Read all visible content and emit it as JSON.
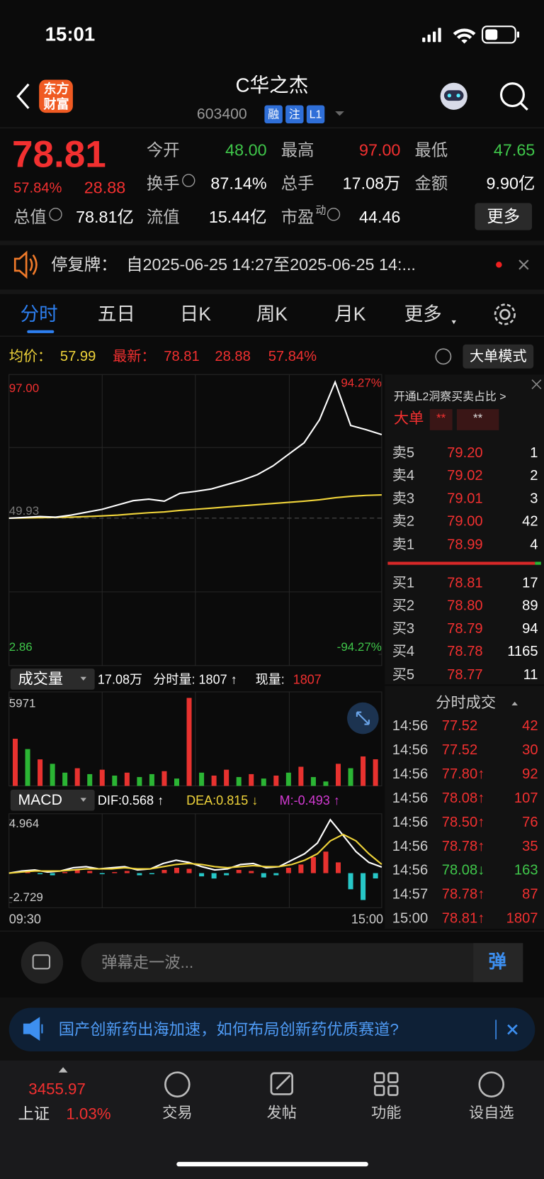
{
  "status": {
    "time": "15:01"
  },
  "header": {
    "logo": [
      "东方",
      "财富"
    ],
    "title": "C华之杰",
    "code": "603400",
    "badges": [
      "融",
      "注",
      "L1"
    ]
  },
  "quote": {
    "price": "78.81",
    "percent": "57.84%",
    "change": "28.88",
    "more": "更多",
    "fields": [
      [
        {
          "label": "今开",
          "value": "48.00",
          "color": "#3fc64a"
        },
        {
          "label": "最高",
          "value": "97.00",
          "color": "#f23030"
        },
        {
          "label": "最低",
          "value": "47.65",
          "color": "#3fc64a"
        }
      ],
      [
        {
          "label": "换手",
          "value": "87.14%",
          "color": "#ffffff"
        },
        {
          "label": "总手",
          "value": "17.08万",
          "color": "#ffffff"
        },
        {
          "label": "金额",
          "value": "9.90亿",
          "color": "#ffffff"
        }
      ],
      [
        {
          "label": "总值",
          "value": "78.81亿",
          "color": "#ffffff"
        },
        {
          "label": "流值",
          "value": "15.44亿",
          "color": "#ffffff"
        },
        {
          "label": "市盈",
          "sup": "动",
          "value": "44.46",
          "color": "#ffffff"
        }
      ]
    ]
  },
  "notice": {
    "label": "停复牌：",
    "text": "自2025-06-25 14:27至2025-06-25 14:..."
  },
  "tabs": [
    "分时",
    "五日",
    "日K",
    "周K",
    "月K",
    "更多"
  ],
  "info": {
    "avg_label": "均价：",
    "avg": "57.99",
    "last_label": "最新：",
    "last": "78.81",
    "change": "28.88",
    "percent": "57.84%",
    "mode": "大单模式"
  },
  "chart_data": [
    {
      "type": "line",
      "series": [
        {
          "color": "#ffffff",
          "values": [
            49.93,
            50.2,
            50.5,
            50.3,
            51.0,
            52.0,
            53.0,
            54.5,
            56.0,
            56.5,
            55.8,
            58.5,
            59.2,
            60.0,
            61.5,
            63.0,
            65.0,
            68.0,
            72.0,
            76.0,
            84.0,
            97.0,
            82.0,
            80.5,
            78.81
          ]
        },
        {
          "color": "#f0d43a",
          "values": [
            49.93,
            50.0,
            50.1,
            50.2,
            50.3,
            50.5,
            50.7,
            51.0,
            51.4,
            51.8,
            52.1,
            52.6,
            53.0,
            53.4,
            53.8,
            54.2,
            54.6,
            55.0,
            55.4,
            55.8,
            56.3,
            57.0,
            57.5,
            57.8,
            57.99
          ]
        }
      ],
      "ylim": [
        2.86,
        97
      ],
      "yticks": [
        2.86,
        49.93,
        {
          "value": 97,
          "label": "97.00"
        }
      ],
      "y2lim": [
        -94.27,
        94.27
      ],
      "y2ticks": [
        {
          "value": -94.27,
          "label": "-94.27%"
        },
        {
          "value": 94.27,
          "label": "94.27%"
        }
      ]
    },
    {
      "type": "bar",
      "title": "成交量",
      "total": "17.08万",
      "minute_volume": "分时量: 1807 ↑",
      "current_label": "现量:",
      "current": "1807",
      "values": [
        3200,
        2500,
        1800,
        1500,
        900,
        1200,
        800,
        1100,
        700,
        900,
        600,
        800,
        1000,
        500,
        5971,
        900,
        700,
        1100,
        600,
        800,
        500,
        700,
        900,
        1300,
        600,
        300,
        1500,
        1200,
        2000,
        1807
      ],
      "colors": [
        "#e8322f",
        "#2bb534",
        "#e8322f",
        "#2bb534",
        "#2bb534",
        "#e8322f",
        "#2bb534",
        "#e8322f",
        "#2bb534",
        "#e8322f",
        "#2bb534",
        "#2bb534",
        "#e8322f",
        "#2bb534",
        "#e8322f",
        "#2bb534",
        "#e8322f",
        "#e8322f",
        "#2bb534",
        "#e8322f",
        "#2bb534",
        "#e8322f",
        "#2bb534",
        "#e8322f",
        "#2bb534",
        "#2bb534",
        "#e8322f",
        "#2bb534",
        "#e8322f",
        "#e8322f"
      ],
      "ylim": [
        0,
        5971
      ],
      "yticks": [
        5971
      ]
    },
    {
      "type": "macd",
      "title": "MACD",
      "dif_label": "DIF:0.568 ↑",
      "dea_label": "DEA:0.815 ↓",
      "m_label": "M:-0.493 ↑",
      "series": [
        {
          "color": "#ffffff",
          "values": [
            0,
            0.2,
            0.3,
            0.1,
            0.2,
            0.5,
            0.6,
            0.4,
            0.5,
            0.6,
            0.3,
            0.4,
            0.9,
            1.2,
            1.0,
            0.6,
            0.3,
            0.4,
            0.8,
            0.9,
            0.5,
            0.6,
            1.2,
            1.8,
            2.8,
            4.964,
            3.5,
            2.0,
            1.0,
            0.568
          ]
        },
        {
          "color": "#f0d43a",
          "values": [
            0,
            0.1,
            0.2,
            0.2,
            0.2,
            0.3,
            0.4,
            0.4,
            0.4,
            0.5,
            0.4,
            0.4,
            0.6,
            0.8,
            0.9,
            0.8,
            0.6,
            0.5,
            0.6,
            0.7,
            0.6,
            0.6,
            0.8,
            1.2,
            1.8,
            3.0,
            3.6,
            3.0,
            1.8,
            0.815
          ]
        }
      ],
      "histogram": {
        "values": [
          0.1,
          0.2,
          -0.1,
          -0.2,
          0.1,
          0.3,
          0.2,
          -0.1,
          0.1,
          0.2,
          -0.2,
          -0.1,
          0.3,
          0.5,
          0.4,
          -0.3,
          -0.5,
          -0.2,
          0.3,
          0.2,
          -0.4,
          -0.2,
          0.5,
          0.8,
          1.5,
          2.0,
          1.0,
          -1.5,
          -2.5,
          -0.493
        ],
        "colors": [
          "#e8322f",
          "#27c7c7"
        ]
      },
      "ylim": [
        -2.729,
        4.964
      ],
      "yticks": [
        -2.729,
        4.964
      ],
      "x_labels": [
        "09:30",
        "15:00"
      ]
    }
  ],
  "order_book": {
    "title": "开通L2洞察买卖占比 >",
    "big_label": "大单",
    "big_values": [
      "**",
      "**"
    ],
    "asks": [
      {
        "label": "卖5",
        "price": "79.20",
        "vol": "1"
      },
      {
        "label": "卖4",
        "price": "79.02",
        "vol": "2"
      },
      {
        "label": "卖3",
        "price": "79.01",
        "vol": "3"
      },
      {
        "label": "卖2",
        "price": "79.00",
        "vol": "42"
      },
      {
        "label": "卖1",
        "price": "78.99",
        "vol": "4"
      }
    ],
    "bids": [
      {
        "label": "买1",
        "price": "78.81",
        "vol": "17"
      },
      {
        "label": "买2",
        "price": "78.80",
        "vol": "89"
      },
      {
        "label": "买3",
        "price": "78.79",
        "vol": "94"
      },
      {
        "label": "买4",
        "price": "78.78",
        "vol": "1165"
      },
      {
        "label": "买5",
        "price": "78.77",
        "vol": "11"
      }
    ]
  },
  "trades": {
    "title": "分时成交",
    "rows": [
      {
        "time": "14:56",
        "price": "77.52",
        "vol": "42",
        "color": "#f23030"
      },
      {
        "time": "14:56",
        "price": "77.52",
        "vol": "30",
        "color": "#f23030"
      },
      {
        "time": "14:56",
        "price": "77.80↑",
        "vol": "92",
        "color": "#f23030"
      },
      {
        "time": "14:56",
        "price": "78.08↑",
        "vol": "107",
        "color": "#f23030"
      },
      {
        "time": "14:56",
        "price": "78.50↑",
        "vol": "76",
        "color": "#f23030"
      },
      {
        "time": "14:56",
        "price": "78.78↑",
        "vol": "35",
        "color": "#f23030"
      },
      {
        "time": "14:56",
        "price": "78.08↓",
        "vol": "163",
        "color": "#3fc64a"
      },
      {
        "time": "14:57",
        "price": "78.78↑",
        "vol": "87",
        "color": "#f23030"
      },
      {
        "time": "15:00",
        "price": "78.81↑",
        "vol": "1807",
        "color": "#f23030"
      }
    ]
  },
  "comment": {
    "placeholder": "弹幕走一波...",
    "button": "弹"
  },
  "ad": {
    "text": "国产创新药出海加速，如何布局创新药优质赛道?"
  },
  "nav": {
    "index": "3455.97",
    "index_name": "上证",
    "index_pct": "1.03%",
    "items": [
      "交易",
      "发帖",
      "功能",
      "设自选"
    ]
  }
}
